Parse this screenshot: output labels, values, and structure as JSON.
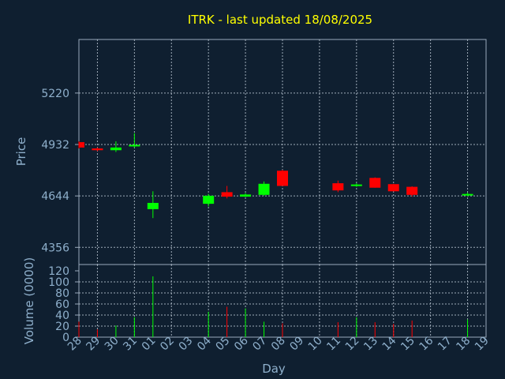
{
  "chart_data": {
    "type": "candlestick",
    "title": "ITRK - last updated 18/08/2025",
    "xlabel": "Day",
    "ylabel_price": "Price",
    "ylabel_volume": "Volume (0000)",
    "x_ticks": [
      "28",
      "29",
      "30",
      "31",
      "01",
      "02",
      "03",
      "04",
      "05",
      "06",
      "07",
      "08",
      "09",
      "10",
      "11",
      "12",
      "13",
      "14",
      "15",
      "16",
      "17",
      "18",
      "19"
    ],
    "price_ticks": [
      4356,
      4644,
      4932,
      5220
    ],
    "price_ylim": [
      4260,
      5520
    ],
    "volume_ticks": [
      0,
      20,
      40,
      60,
      80,
      100,
      120
    ],
    "volume_ylim": [
      0,
      120
    ],
    "up_color": "#00ff00",
    "down_color": "#ff0000",
    "grid": true,
    "candles": [
      {
        "day": "28",
        "open": 4945,
        "high": 4950,
        "low": 4910,
        "close": 4915,
        "volume": 28
      },
      {
        "day": "29",
        "open": 4910,
        "high": 4915,
        "low": 4895,
        "close": 4900,
        "volume": 14
      },
      {
        "day": "30",
        "open": 4900,
        "high": 4950,
        "low": 4890,
        "close": 4915,
        "volume": 21
      },
      {
        "day": "31",
        "open": 4925,
        "high": 4995,
        "low": 4915,
        "close": 4930,
        "volume": 36
      },
      {
        "day": "01",
        "open": 4570,
        "high": 4670,
        "low": 4520,
        "close": 4605,
        "volume": 110
      },
      {
        "day": "04",
        "open": 4600,
        "high": 4655,
        "low": 4585,
        "close": 4645,
        "volume": 46
      },
      {
        "day": "05",
        "open": 4665,
        "high": 4700,
        "low": 4630,
        "close": 4640,
        "volume": 55
      },
      {
        "day": "06",
        "open": 4640,
        "high": 4660,
        "low": 4638,
        "close": 4652,
        "volume": 52
      },
      {
        "day": "07",
        "open": 4650,
        "high": 4725,
        "low": 4645,
        "close": 4712,
        "volume": 28
      },
      {
        "day": "08",
        "open": 4785,
        "high": 4790,
        "low": 4700,
        "close": 4700,
        "volume": 25
      },
      {
        "day": "11",
        "open": 4715,
        "high": 4730,
        "low": 4665,
        "close": 4675,
        "volume": 27
      },
      {
        "day": "12",
        "open": 4700,
        "high": 4715,
        "low": 4695,
        "close": 4708,
        "volume": 36
      },
      {
        "day": "13",
        "open": 4745,
        "high": 4748,
        "low": 4690,
        "close": 4690,
        "volume": 27
      },
      {
        "day": "14",
        "open": 4710,
        "high": 4712,
        "low": 4670,
        "close": 4670,
        "volume": 24
      },
      {
        "day": "15",
        "open": 4695,
        "high": 4698,
        "low": 4640,
        "close": 4650,
        "volume": 30
      },
      {
        "day": "18",
        "open": 4648,
        "high": 4662,
        "low": 4642,
        "close": 4655,
        "volume": 32
      }
    ]
  }
}
